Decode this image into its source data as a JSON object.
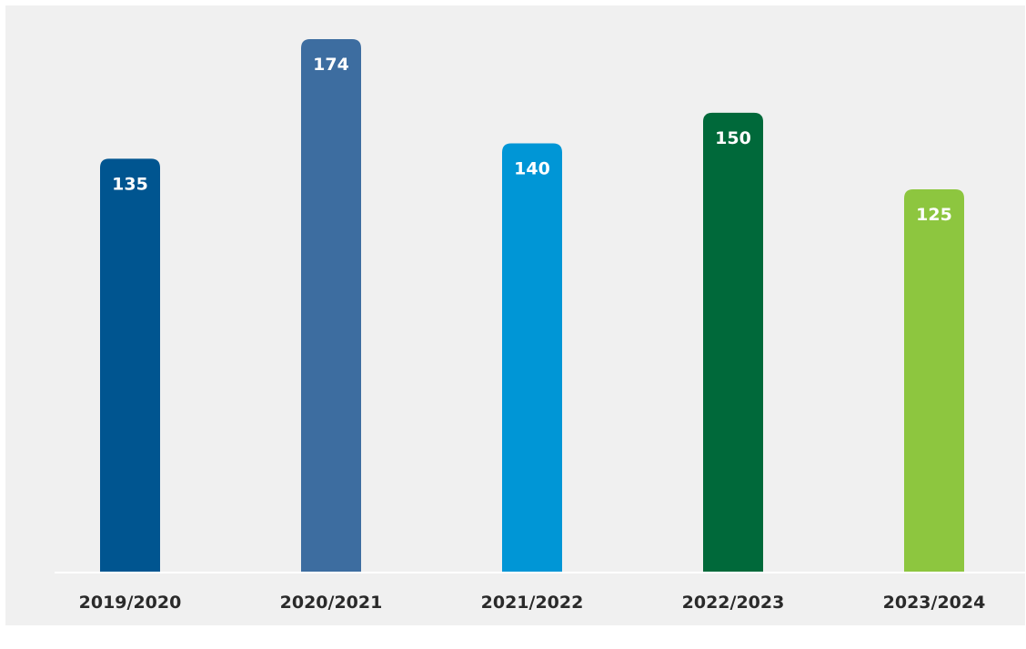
{
  "chart_data": {
    "type": "bar",
    "categories": [
      "2019/2020",
      "2020/2021",
      "2021/2022",
      "2022/2023",
      "2023/2024"
    ],
    "values": [
      135,
      174,
      140,
      150,
      125
    ],
    "colors": [
      "#005590",
      "#3d6da0",
      "#0096d6",
      "#00693a",
      "#8dc63f"
    ],
    "data_labels": [
      "135",
      "174",
      "140",
      "150",
      "125"
    ],
    "title": "",
    "xlabel": "",
    "ylabel": "",
    "ylim": [
      0,
      174
    ],
    "grid": false,
    "legend": "none"
  }
}
